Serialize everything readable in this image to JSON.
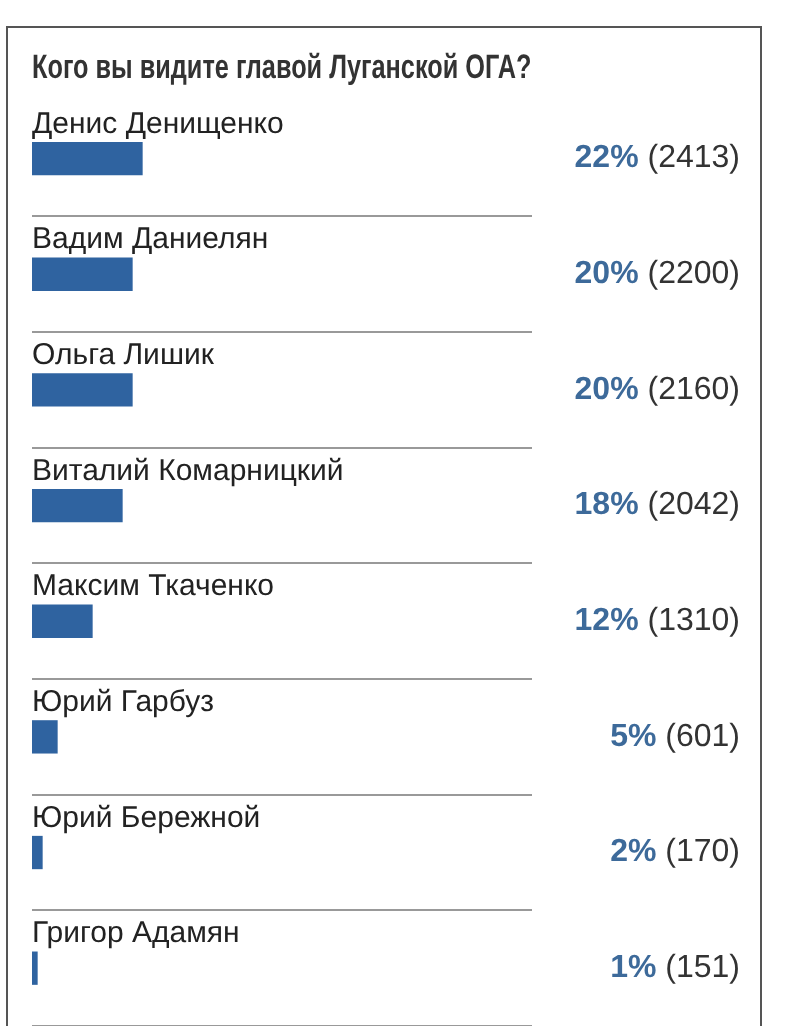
{
  "chart_data": {
    "type": "bar",
    "orientation": "horizontal",
    "title": "Кого вы видите главой Луганской ОГА?",
    "categories": [
      "Денис Денищенко",
      "Вадим Даниелян",
      "Ольга Лишик",
      "Виталий Комарницкий",
      "Максим Ткаченко",
      "Юрий Гарбуз",
      "Юрий Бережной",
      "Григор Адамян"
    ],
    "values": [
      22,
      20,
      20,
      18,
      12,
      5,
      2,
      1
    ],
    "value_labels": [
      "22% (2413)",
      "20% (2200)",
      "20% (2160)",
      "18% (2042)",
      "12% (1310)",
      "5% (601)",
      "2% (170)",
      "1% (151)"
    ],
    "color": "#2f63a0",
    "tick_labels": false,
    "grid": "y"
  }
}
